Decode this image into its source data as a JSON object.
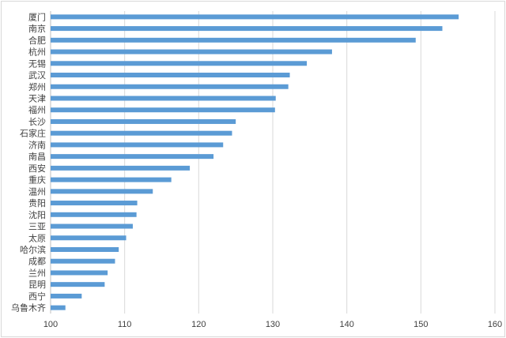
{
  "chart_data": {
    "type": "bar",
    "orientation": "horizontal",
    "categories": [
      "厦门",
      "南京",
      "合肥",
      "杭州",
      "无锡",
      "武汉",
      "郑州",
      "天津",
      "福州",
      "长沙",
      "石家庄",
      "济南",
      "南昌",
      "西安",
      "重庆",
      "温州",
      "贵阳",
      "沈阳",
      "三亚",
      "太原",
      "哈尔滨",
      "成都",
      "兰州",
      "昆明",
      "西宁",
      "乌鲁木齐"
    ],
    "values": [
      155.1,
      152.9,
      149.3,
      138.0,
      134.6,
      132.3,
      132.1,
      130.4,
      130.3,
      125.0,
      124.5,
      123.3,
      122.0,
      118.8,
      116.3,
      113.8,
      111.7,
      111.6,
      111.1,
      110.2,
      109.2,
      108.7,
      107.7,
      107.3,
      104.2,
      102.0
    ],
    "xlim": [
      100,
      160
    ],
    "xticks": [
      100,
      110,
      120,
      130,
      140,
      150,
      160
    ],
    "title": "",
    "xlabel": "",
    "ylabel": "",
    "grid": "vertical",
    "legend": "none",
    "bar_color": "#5b9bd5",
    "grid_color": "#d9d9d9",
    "axis_color": "#bfbfbf"
  }
}
